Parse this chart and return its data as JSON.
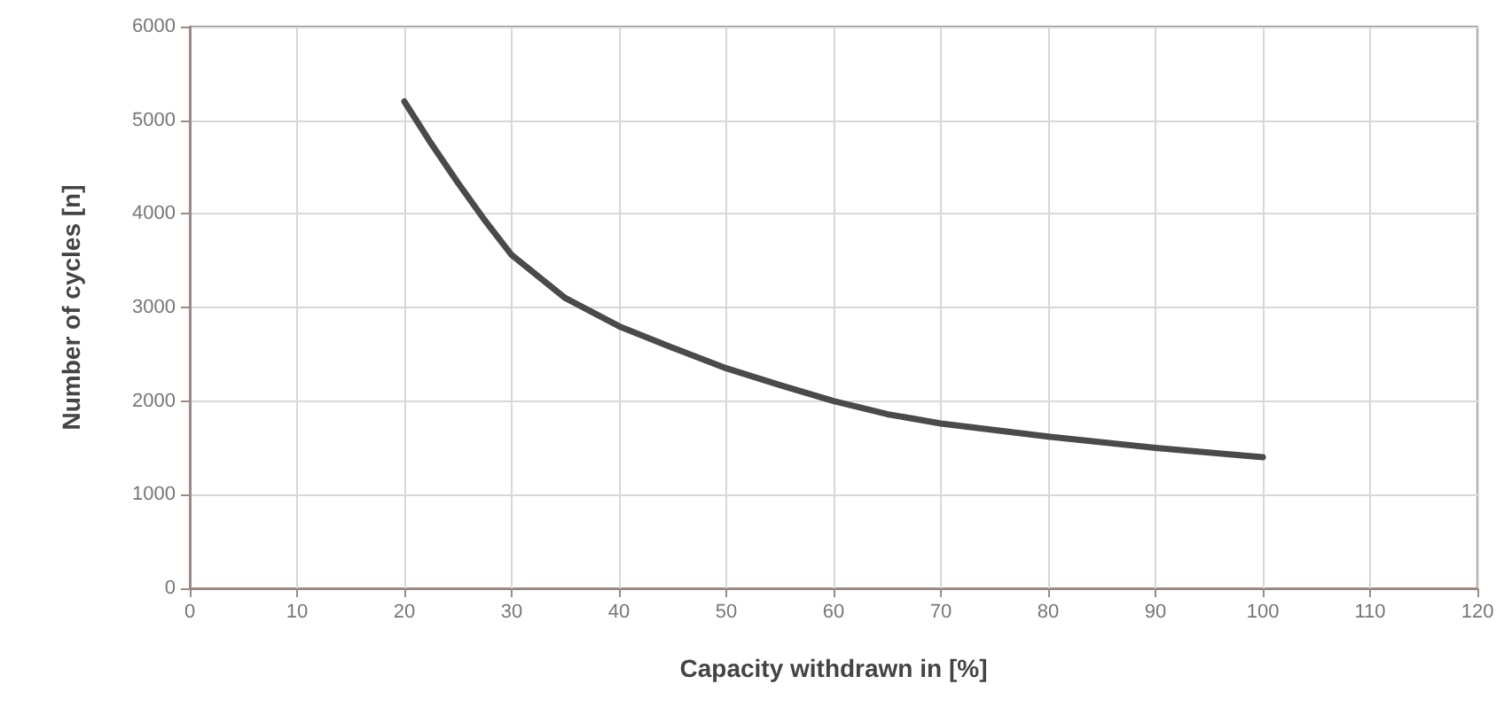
{
  "chart_data": {
    "type": "line",
    "xlabel": "Capacity withdrawn in [%]",
    "ylabel": "Number of cycles [n]",
    "x": [
      20,
      22.5,
      25,
      27.5,
      30,
      35,
      40,
      45,
      50,
      55,
      60,
      65,
      70,
      80,
      90,
      100
    ],
    "series": [
      {
        "color": "#4a4a4a",
        "values": [
          5200,
          4750,
          4330,
          3930,
          3560,
          3100,
          2800,
          2570,
          2350,
          2170,
          2000,
          1860,
          1760,
          1620,
          1500,
          1400
        ]
      }
    ],
    "xlim": [
      0,
      120
    ],
    "xticks": [
      0,
      10,
      20,
      30,
      40,
      50,
      60,
      70,
      80,
      90,
      100,
      110,
      120
    ],
    "ylim": [
      0,
      6000
    ],
    "yticks": [
      0,
      1000,
      2000,
      3000,
      4000,
      5000,
      6000
    ],
    "grid": true,
    "marker": "none",
    "line_style": "solid"
  }
}
